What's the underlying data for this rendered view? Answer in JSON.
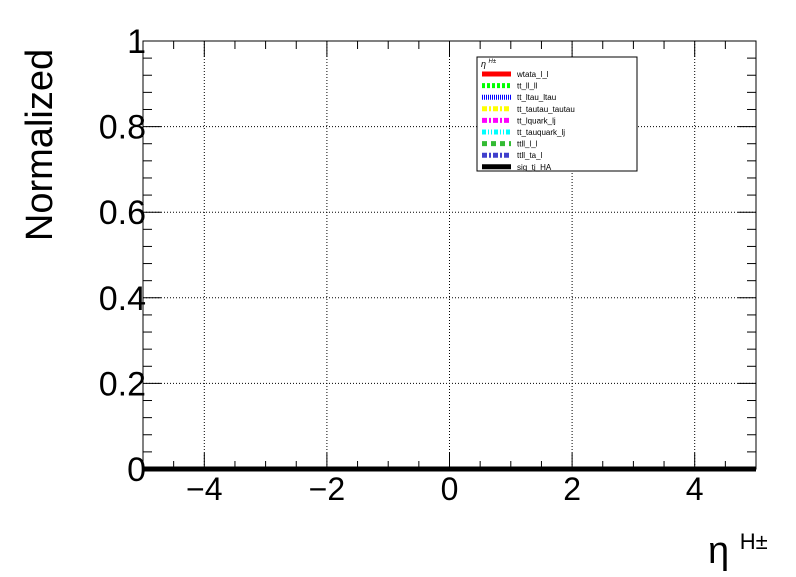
{
  "chart_data": {
    "type": "line",
    "title": "",
    "xlabel_main": "η",
    "xlabel_sup": "H±",
    "ylabel": "Normalized",
    "xlim": [
      -5,
      5
    ],
    "ylim": [
      0,
      1
    ],
    "x_major_ticks": [
      -4,
      -2,
      0,
      2,
      4
    ],
    "x_tick_labels": [
      "−4",
      "−2",
      "0",
      "2",
      "4"
    ],
    "y_major_ticks": [
      0,
      0.2,
      0.4,
      0.6,
      0.8,
      1
    ],
    "y_tick_labels": [
      "0",
      "0.2",
      "0.4",
      "0.6",
      "0.8",
      "1"
    ],
    "grid": true,
    "legend": {
      "position": "top-right",
      "header_main": "η",
      "header_sup": "H±",
      "entries": [
        {
          "name": "wtata_l_l",
          "color": "#ff0000",
          "style": "solid"
        },
        {
          "name": "tt_ll_ll",
          "color": "#00ff00",
          "style": "dotted"
        },
        {
          "name": "tt_ltau_ltau",
          "color": "#0000ff",
          "style": "densedot"
        },
        {
          "name": "tt_tautau_tautau",
          "color": "#ffff00",
          "style": "dashdot"
        },
        {
          "name": "tt_lquark_lj",
          "color": "#ff00ff",
          "style": "dashdot"
        },
        {
          "name": "tt_tauquark_lj",
          "color": "#00ffff",
          "style": "dashdotdot"
        },
        {
          "name": "ttll_l_l",
          "color": "#33bb33",
          "style": "dashed"
        },
        {
          "name": "ttll_ta_l",
          "color": "#4040cc",
          "style": "dashdot"
        },
        {
          "name": "sig_tj_HA",
          "color": "#000000",
          "style": "solid"
        }
      ]
    },
    "series": [
      {
        "name": "sig_tj_HA",
        "color": "#000000",
        "x": [
          -5,
          5
        ],
        "y": [
          0,
          0
        ]
      }
    ]
  }
}
